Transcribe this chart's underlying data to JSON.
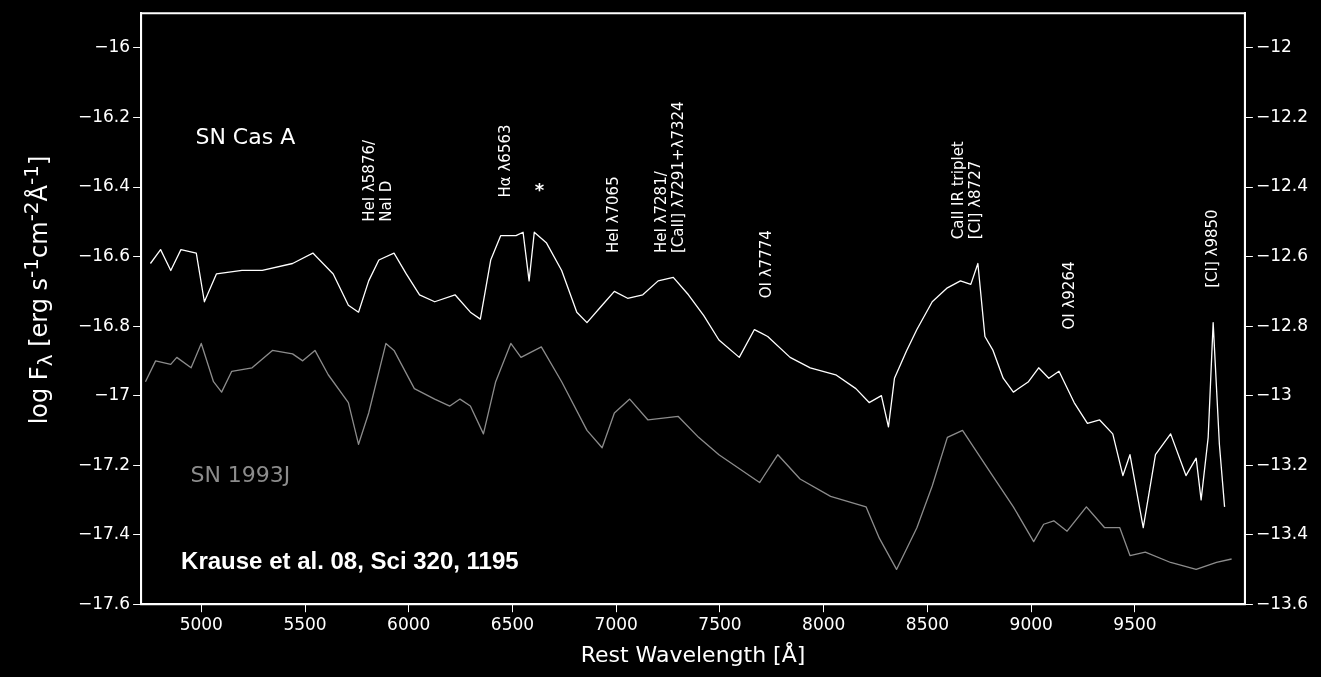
{
  "chart_data": {
    "type": "line",
    "xlabel": "Rest Wavelength [Å]",
    "ylabel": "log F$_{λ}$ [erg s$^{-1}$cm$^{-2}$Å$^{-1}$]",
    "xlim": [
      4710,
      10030
    ],
    "xticks": [
      5000,
      5500,
      6000,
      6500,
      7000,
      7500,
      8000,
      8500,
      9000,
      9500
    ],
    "ylim": [
      -17.6,
      -15.9
    ],
    "yticks": [
      -16,
      -16.2,
      -16.4,
      -16.6,
      -16.8,
      -17,
      -17.2,
      -17.4,
      -17.6
    ],
    "y2lim": [
      -13.6,
      -11.9
    ],
    "y2ticks": [
      -12,
      -12.2,
      -12.4,
      -12.6,
      -12.8,
      -13,
      -13.2,
      -13.4,
      -13.6
    ],
    "legend": false,
    "marker": "none",
    "line_style": "solid",
    "series": [
      {
        "name": "SN Cas A",
        "color": "#ffffff",
        "x": [
          4755,
          4804,
          4853,
          4902,
          4976,
          5015,
          5073,
          5196,
          5294,
          5440,
          5538,
          5636,
          5709,
          5758,
          5807,
          5856,
          5929,
          5988,
          6052,
          6125,
          6223,
          6297,
          6345,
          6395,
          6443,
          6517,
          6551,
          6580,
          6605,
          6663,
          6737,
          6810,
          6859,
          6932,
          6991,
          7055,
          7128,
          7202,
          7275,
          7348,
          7422,
          7495,
          7593,
          7666,
          7730,
          7838,
          7935,
          8058,
          8155,
          8219,
          8278,
          8312,
          8341,
          8400,
          8449,
          8523,
          8596,
          8659,
          8709,
          8743,
          8777,
          8816,
          8865,
          8914,
          8987,
          9036,
          9085,
          9134,
          9207,
          9271,
          9330,
          9393,
          9442,
          9476,
          9540,
          9599,
          9672,
          9746,
          9795,
          9819,
          9853,
          9877,
          9907,
          9932
        ],
        "values": [
          -16.62,
          -16.58,
          -16.64,
          -16.58,
          -16.59,
          -16.73,
          -16.65,
          -16.64,
          -16.64,
          -16.62,
          -16.59,
          -16.65,
          -16.74,
          -16.76,
          -16.67,
          -16.61,
          -16.59,
          -16.65,
          -16.71,
          -16.73,
          -16.71,
          -16.76,
          -16.78,
          -16.61,
          -16.54,
          -16.54,
          -16.53,
          -16.67,
          -16.53,
          -16.56,
          -16.64,
          -16.76,
          -16.79,
          -16.74,
          -16.7,
          -16.72,
          -16.71,
          -16.67,
          -16.66,
          -16.71,
          -16.77,
          -16.84,
          -16.89,
          -16.81,
          -16.83,
          -16.89,
          -16.92,
          -16.94,
          -16.98,
          -17.02,
          -17.0,
          -17.09,
          -16.95,
          -16.87,
          -16.81,
          -16.73,
          -16.69,
          -16.67,
          -16.68,
          -16.62,
          -16.83,
          -16.87,
          -16.95,
          -16.99,
          -16.96,
          -16.92,
          -16.95,
          -16.93,
          -17.02,
          -17.08,
          -17.07,
          -17.11,
          -17.23,
          -17.17,
          -17.38,
          -17.17,
          -17.11,
          -17.23,
          -17.18,
          -17.3,
          -17.12,
          -16.79,
          -17.14,
          -17.32
        ]
      },
      {
        "name": "SN 1993J",
        "color": "#8c8c8c",
        "axis": "y2",
        "x": [
          4731,
          4780,
          4853,
          4882,
          4951,
          5000,
          5059,
          5098,
          5147,
          5245,
          5343,
          5440,
          5489,
          5548,
          5612,
          5709,
          5758,
          5807,
          5890,
          5929,
          6027,
          6125,
          6198,
          6247,
          6297,
          6360,
          6419,
          6492,
          6541,
          6639,
          6737,
          6859,
          6932,
          6991,
          7065,
          7153,
          7299,
          7397,
          7495,
          7691,
          7779,
          7886,
          8033,
          8204,
          8268,
          8351,
          8449,
          8523,
          8596,
          8669,
          8791,
          8914,
          9012,
          9060,
          9109,
          9173,
          9266,
          9354,
          9427,
          9476,
          9550,
          9672,
          9795,
          9893,
          9966
        ],
        "values": [
          -12.96,
          -12.9,
          -12.91,
          -12.89,
          -12.92,
          -12.85,
          -12.96,
          -12.99,
          -12.93,
          -12.92,
          -12.87,
          -12.88,
          -12.9,
          -12.87,
          -12.94,
          -13.02,
          -13.14,
          -13.05,
          -12.85,
          -12.87,
          -12.98,
          -13.01,
          -13.03,
          -13.01,
          -13.03,
          -13.11,
          -12.96,
          -12.85,
          -12.89,
          -12.86,
          -12.96,
          -13.1,
          -13.15,
          -13.05,
          -13.01,
          -13.07,
          -13.06,
          -13.12,
          -13.17,
          -13.25,
          -13.17,
          -13.24,
          -13.29,
          -13.32,
          -13.41,
          -13.5,
          -13.38,
          -13.26,
          -13.12,
          -13.1,
          -13.21,
          -13.32,
          -13.42,
          -13.37,
          -13.36,
          -13.39,
          -13.32,
          -13.38,
          -13.38,
          -13.46,
          -13.45,
          -13.48,
          -13.5,
          -13.48,
          -13.47
        ]
      }
    ],
    "annotations": [
      "HeI λ5876/\nNaI D",
      "Hα λ6563",
      "*",
      "HeI λ7065",
      "HeI λ7281/\n[CaII] λ7291+λ7324",
      "OI λ7774",
      "CaII IR triplet\n[CI] λ8727",
      "OI λ9264",
      "[CI] λ9850",
      "Krause et al. 08, Sci 320, 1195"
    ]
  }
}
